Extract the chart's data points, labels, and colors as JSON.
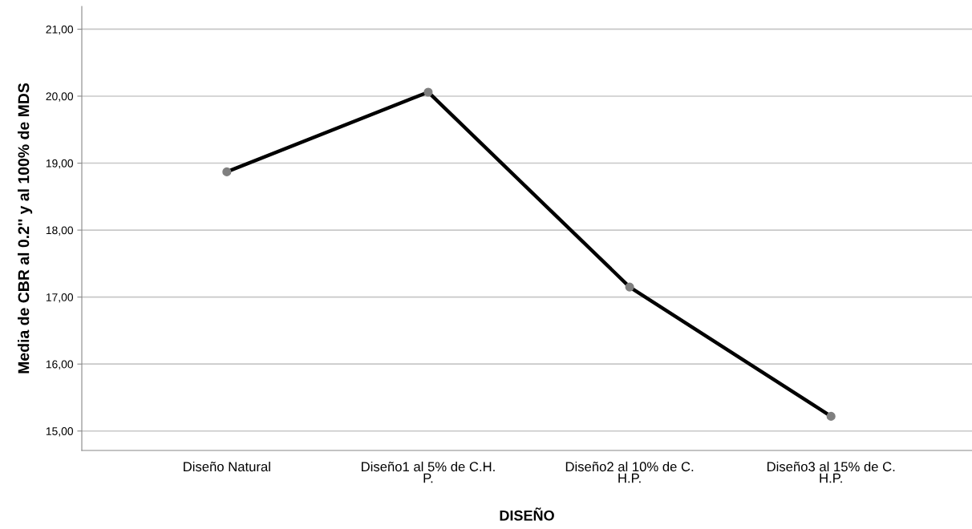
{
  "chart_data": {
    "type": "line",
    "xlabel": "DISEÑO",
    "ylabel": "Media de CBR al 0.2'' y al 100% de MDS",
    "categories": [
      "Diseño Natural",
      "Diseño1 al 5% de C.H.\nP.",
      "Diseño2 al 10% de C.\nH.P.",
      "Diseño3 al 15% de C.\nH.P."
    ],
    "series": [
      {
        "color": "#000000",
        "values": [
          18.87,
          20.06,
          17.15,
          15.22
        ]
      }
    ],
    "ylim": [
      14.71,
      21.34
    ],
    "yticks": [
      {
        "value": 15,
        "label": "15,00"
      },
      {
        "value": 16,
        "label": "16,00"
      },
      {
        "value": 17,
        "label": "17,00"
      },
      {
        "value": 18,
        "label": "18,00"
      },
      {
        "value": 19,
        "label": "19,00"
      },
      {
        "value": 20,
        "label": "20,00"
      },
      {
        "value": 21,
        "label": "21,00"
      }
    ],
    "grid": "y",
    "marker": "circle",
    "line_style": "solid"
  }
}
